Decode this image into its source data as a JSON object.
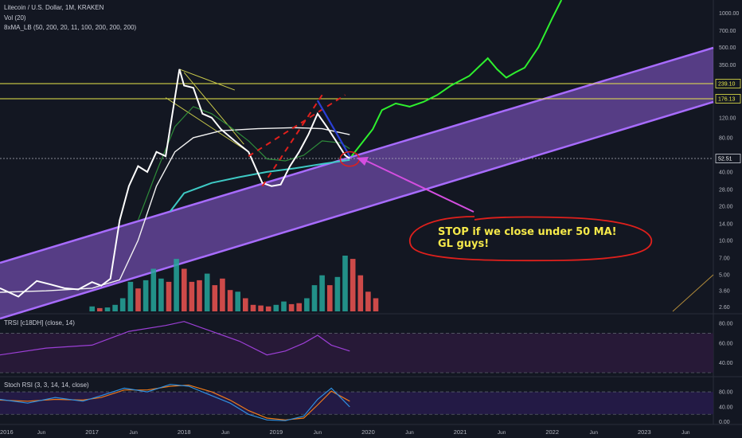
{
  "header": {
    "symbol_title": "Litecoin / U.S. Dollar, 1M, KRAKEN",
    "vol_label": "Vol (20)",
    "ma_label": "8xMA_LB (50, 200, 20, 11, 100, 200, 200, 200)",
    "trsi_label": "TRSI [c18DH] (close, 14)",
    "stoch_label": "Stoch RSI (3, 3, 14, 14, close)"
  },
  "annotation": {
    "line1": "STOP if we close under 50 MA!",
    "line2": "GL guys!"
  },
  "colors": {
    "background": "#131722",
    "price": "#ffffff",
    "ma_white": "#f2f2f2",
    "ma_green": "#2e8b3a",
    "ma_cyan": "#3ec9c4",
    "projection": "#2ef02e",
    "channel": "#a86cff",
    "level": "#e8e84a",
    "volume_up": "#26a69a",
    "volume_down": "#ef5350",
    "note_outline": "#e0201c",
    "arrow": "#d44ee0",
    "rsi_line": "#9c3fd6",
    "stoch_k": "#2f8fe0",
    "stoch_d": "#f07a1a"
  },
  "chart_data": {
    "type": "line",
    "main_pane": {
      "y_scale": "log",
      "y_ticks": [
        1000,
        700,
        500,
        350,
        240,
        170,
        120,
        80,
        60,
        40,
        28,
        20,
        14,
        10,
        7,
        5,
        3.6,
        2.6
      ],
      "y_tick_labels": [
        "1000.00",
        "700.00",
        "500.00",
        "350.00",
        "",
        "",
        "120.00",
        "80.00",
        "",
        "40.00",
        "28.00",
        "20.00",
        "14.00",
        "10.00",
        "7.00",
        "5.00",
        "3.60",
        "2.60"
      ],
      "price_labels": [
        {
          "value": 239.1,
          "label": "239.10"
        },
        {
          "value": 176.13,
          "label": "176.13"
        },
        {
          "value": 52.51,
          "label": "52.51"
        }
      ],
      "price_series": [
        [
          2016.0,
          3.8
        ],
        [
          2016.2,
          3.2
        ],
        [
          2016.4,
          4.4
        ],
        [
          2016.55,
          4.1
        ],
        [
          2016.7,
          3.8
        ],
        [
          2016.85,
          3.7
        ],
        [
          2017.0,
          4.3
        ],
        [
          2017.1,
          4.0
        ],
        [
          2017.2,
          4.6
        ],
        [
          2017.3,
          15
        ],
        [
          2017.4,
          30
        ],
        [
          2017.5,
          45
        ],
        [
          2017.6,
          40
        ],
        [
          2017.7,
          60
        ],
        [
          2017.8,
          55
        ],
        [
          2017.95,
          320
        ],
        [
          2018.0,
          230
        ],
        [
          2018.1,
          220
        ],
        [
          2018.2,
          130
        ],
        [
          2018.3,
          120
        ],
        [
          2018.4,
          95
        ],
        [
          2018.55,
          75
        ],
        [
          2018.7,
          60
        ],
        [
          2018.85,
          32
        ],
        [
          2018.95,
          30
        ],
        [
          2019.05,
          31
        ],
        [
          2019.15,
          45
        ],
        [
          2019.25,
          60
        ],
        [
          2019.35,
          85
        ],
        [
          2019.45,
          130
        ],
        [
          2019.55,
          100
        ],
        [
          2019.65,
          75
        ],
        [
          2019.75,
          56
        ],
        [
          2019.8,
          52.5
        ]
      ],
      "ma_white": [
        [
          2016.0,
          3.5
        ],
        [
          2016.5,
          3.6
        ],
        [
          2017.0,
          3.8
        ],
        [
          2017.3,
          4.5
        ],
        [
          2017.5,
          10
        ],
        [
          2017.7,
          30
        ],
        [
          2017.9,
          60
        ],
        [
          2018.1,
          80
        ],
        [
          2018.4,
          92
        ],
        [
          2018.8,
          96
        ],
        [
          2019.2,
          98
        ],
        [
          2019.5,
          96
        ],
        [
          2019.8,
          85
        ]
      ],
      "ma_green": [
        [
          2017.5,
          15
        ],
        [
          2017.7,
          40
        ],
        [
          2017.9,
          100
        ],
        [
          2018.1,
          150
        ],
        [
          2018.3,
          130
        ],
        [
          2018.5,
          100
        ],
        [
          2018.7,
          75
        ],
        [
          2018.9,
          52
        ],
        [
          2019.1,
          50
        ],
        [
          2019.3,
          56
        ],
        [
          2019.5,
          75
        ],
        [
          2019.7,
          72
        ],
        [
          2019.8,
          64
        ]
      ],
      "ma_cyan": [
        [
          2017.85,
          18
        ],
        [
          2018.0,
          26
        ],
        [
          2018.3,
          32
        ],
        [
          2018.6,
          36
        ],
        [
          2018.9,
          40
        ],
        [
          2019.2,
          43
        ],
        [
          2019.5,
          47
        ],
        [
          2019.8,
          51
        ]
      ],
      "projection": [
        [
          2019.82,
          55
        ],
        [
          2019.95,
          75
        ],
        [
          2020.05,
          95
        ],
        [
          2020.15,
          140
        ],
        [
          2020.3,
          160
        ],
        [
          2020.45,
          150
        ],
        [
          2020.6,
          165
        ],
        [
          2020.75,
          190
        ],
        [
          2020.9,
          230
        ],
        [
          2021.1,
          280
        ],
        [
          2021.3,
          400
        ],
        [
          2021.4,
          320
        ],
        [
          2021.5,
          270
        ],
        [
          2021.6,
          300
        ],
        [
          2021.7,
          330
        ],
        [
          2021.85,
          500
        ],
        [
          2022.0,
          900
        ],
        [
          2022.1,
          1300
        ]
      ],
      "horizontal_levels": [
        239.1,
        176.13,
        52.51
      ]
    },
    "volume": {
      "x_start": 2017.0,
      "x_step": 0.0833,
      "values": [
        1.5,
        1.0,
        1.2,
        2.0,
        4.0,
        9.0,
        7.0,
        9.5,
        13.0,
        10.0,
        9.0,
        16.0,
        13.0,
        9.0,
        9.5,
        11.5,
        8.0,
        10.0,
        6.5,
        6.0,
        4.0,
        2.0,
        1.8,
        1.5,
        2.0,
        3.0,
        2.2,
        2.5,
        4.0,
        8.0,
        11.0,
        8.0,
        10.5,
        17.0,
        16.0,
        11.0,
        6.0,
        4.0
      ],
      "up": [
        true,
        false,
        true,
        true,
        true,
        true,
        false,
        true,
        true,
        true,
        false,
        true,
        false,
        false,
        false,
        true,
        false,
        false,
        false,
        true,
        false,
        false,
        false,
        false,
        true,
        true,
        false,
        false,
        true,
        true,
        true,
        false,
        true,
        true,
        false,
        false,
        false,
        false
      ]
    },
    "trsi": {
      "y_ticks": [
        80,
        60,
        40
      ],
      "y_tick_labels": [
        "80.00",
        "60.00",
        "40.00"
      ],
      "band": [
        30,
        70
      ],
      "ylim": [
        30,
        85
      ],
      "series": [
        [
          2016.0,
          48
        ],
        [
          2016.5,
          55
        ],
        [
          2017.0,
          58
        ],
        [
          2017.4,
          72
        ],
        [
          2017.8,
          78
        ],
        [
          2018.0,
          82
        ],
        [
          2018.3,
          72
        ],
        [
          2018.6,
          62
        ],
        [
          2018.9,
          48
        ],
        [
          2019.1,
          52
        ],
        [
          2019.3,
          60
        ],
        [
          2019.45,
          68
        ],
        [
          2019.6,
          58
        ],
        [
          2019.8,
          52
        ]
      ]
    },
    "stoch_rsi": {
      "y_ticks": [
        80,
        40,
        0
      ],
      "y_tick_labels": [
        "80.00",
        "40.00",
        "0.00"
      ],
      "band": [
        20,
        80
      ],
      "ylim": [
        -5,
        110
      ],
      "k": [
        [
          2016.0,
          60
        ],
        [
          2016.3,
          50
        ],
        [
          2016.6,
          65
        ],
        [
          2016.9,
          55
        ],
        [
          2017.1,
          70
        ],
        [
          2017.35,
          90
        ],
        [
          2017.6,
          80
        ],
        [
          2017.85,
          100
        ],
        [
          2018.05,
          95
        ],
        [
          2018.3,
          70
        ],
        [
          2018.5,
          50
        ],
        [
          2018.7,
          20
        ],
        [
          2018.9,
          5
        ],
        [
          2019.1,
          3
        ],
        [
          2019.3,
          15
        ],
        [
          2019.45,
          60
        ],
        [
          2019.6,
          90
        ],
        [
          2019.8,
          40
        ]
      ],
      "d": [
        [
          2016.0,
          58
        ],
        [
          2016.3,
          55
        ],
        [
          2016.6,
          60
        ],
        [
          2016.9,
          58
        ],
        [
          2017.1,
          65
        ],
        [
          2017.35,
          85
        ],
        [
          2017.6,
          85
        ],
        [
          2017.85,
          95
        ],
        [
          2018.05,
          98
        ],
        [
          2018.3,
          80
        ],
        [
          2018.5,
          58
        ],
        [
          2018.7,
          30
        ],
        [
          2018.9,
          10
        ],
        [
          2019.1,
          5
        ],
        [
          2019.3,
          10
        ],
        [
          2019.45,
          45
        ],
        [
          2019.6,
          82
        ],
        [
          2019.8,
          55
        ]
      ]
    },
    "x_axis": {
      "ticks": [
        2016.0,
        2016.45,
        2017.0,
        2017.45,
        2018.0,
        2018.45,
        2019.0,
        2019.45,
        2020.0,
        2020.45,
        2021.0,
        2021.45,
        2022.0,
        2022.45,
        2023.0,
        2023.45
      ],
      "labels": [
        "2016",
        "Jun",
        "2017",
        "Jun",
        "2018",
        "Jun",
        "2019",
        "Jun",
        "2020",
        "Jun",
        "2021",
        "Jun",
        "2022",
        "Jun",
        "2023",
        "Jun"
      ]
    },
    "grid": false
  }
}
